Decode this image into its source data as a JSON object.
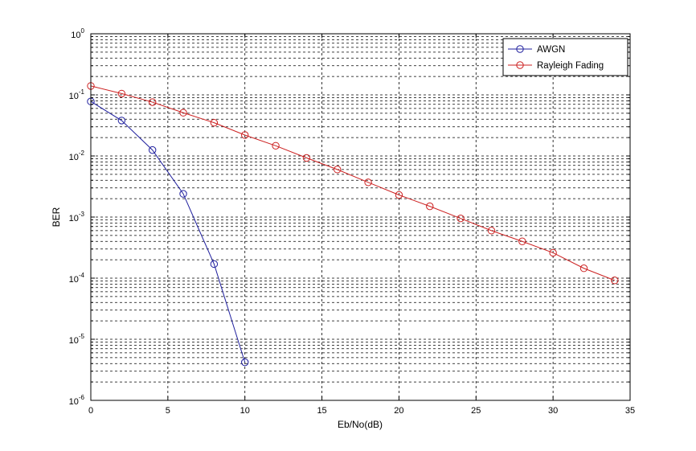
{
  "chart_data": {
    "type": "line",
    "xlabel": "Eb/No(dB)",
    "ylabel": "BER",
    "xlim": [
      0,
      35
    ],
    "ylim": [
      1e-06,
      1
    ],
    "yscale": "log",
    "grid": true,
    "legend_position": "top-right",
    "x_ticks": [
      "0",
      "5",
      "10",
      "15",
      "20",
      "25",
      "30",
      "35"
    ],
    "y_ticks": [
      {
        "base": "10",
        "exp": "-6"
      },
      {
        "base": "10",
        "exp": "-5"
      },
      {
        "base": "10",
        "exp": "-4"
      },
      {
        "base": "10",
        "exp": "-3"
      },
      {
        "base": "10",
        "exp": "-2"
      },
      {
        "base": "10",
        "exp": "-1"
      },
      {
        "base": "10",
        "exp": "0"
      }
    ],
    "series": [
      {
        "name": "AWGN",
        "color": "#1f1f9e",
        "marker": "circle",
        "x": [
          0,
          2,
          4,
          6,
          8,
          10
        ],
        "y": [
          0.078,
          0.038,
          0.0125,
          0.0024,
          0.00017,
          4.2e-06
        ]
      },
      {
        "name": "Rayleigh Fading",
        "color": "#cc2020",
        "marker": "circle",
        "x": [
          0,
          2,
          4,
          6,
          8,
          10,
          12,
          14,
          16,
          18,
          20,
          22,
          24,
          26,
          28,
          30,
          32,
          34
        ],
        "y": [
          0.14,
          0.105,
          0.076,
          0.051,
          0.035,
          0.022,
          0.0147,
          0.0093,
          0.006,
          0.0037,
          0.0023,
          0.0015,
          0.00095,
          0.0006,
          0.0004,
          0.00026,
          0.000145,
          9.2e-05
        ]
      }
    ]
  }
}
